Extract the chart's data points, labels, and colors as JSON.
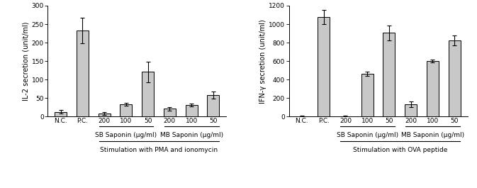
{
  "left": {
    "ylabel": "IL-2 secretion (unit/ml)",
    "xlabel_bottom": "Stimulation with PMA and ionomycin",
    "ylim": [
      0,
      300
    ],
    "yticks": [
      0,
      50,
      100,
      150,
      200,
      250,
      300
    ],
    "categories": [
      "N.C.",
      "P.C.",
      "200",
      "100",
      "50",
      "200",
      "100",
      "50"
    ],
    "values": [
      13,
      233,
      9,
      33,
      121,
      21,
      31,
      58
    ],
    "errors": [
      5,
      35,
      4,
      4,
      28,
      5,
      4,
      10
    ],
    "bar_color": "#c8c8c8",
    "bar_edge_color": "#000000",
    "sb_label": "SB Saponin (μg/ml)",
    "mb_label": "MB Saponin (μg/ml)",
    "sb_indices": [
      2,
      3,
      4
    ],
    "mb_indices": [
      5,
      6,
      7
    ]
  },
  "right": {
    "ylabel": "IFN-γ secretion (unit/ml)",
    "xlabel_bottom": "Stimulation with OVA peptide",
    "ylim": [
      0,
      1200
    ],
    "yticks": [
      0,
      200,
      400,
      600,
      800,
      1000,
      1200
    ],
    "categories": [
      "N.C.",
      "P.C.",
      "200",
      "100",
      "50",
      "200",
      "100",
      "50"
    ],
    "values": [
      5,
      1075,
      5,
      462,
      905,
      135,
      600,
      825
    ],
    "errors": [
      5,
      75,
      5,
      25,
      80,
      30,
      15,
      55
    ],
    "bar_color": "#c8c8c8",
    "bar_edge_color": "#000000",
    "sb_label": "SB Saponin (μg/ml)",
    "mb_label": "MB Saponin (μg/ml)",
    "sb_indices": [
      2,
      3,
      4
    ],
    "mb_indices": [
      5,
      6,
      7
    ]
  },
  "bar_width": 0.55,
  "font_size_tick": 6.5,
  "font_size_label": 7.0,
  "font_size_bottom": 6.5
}
